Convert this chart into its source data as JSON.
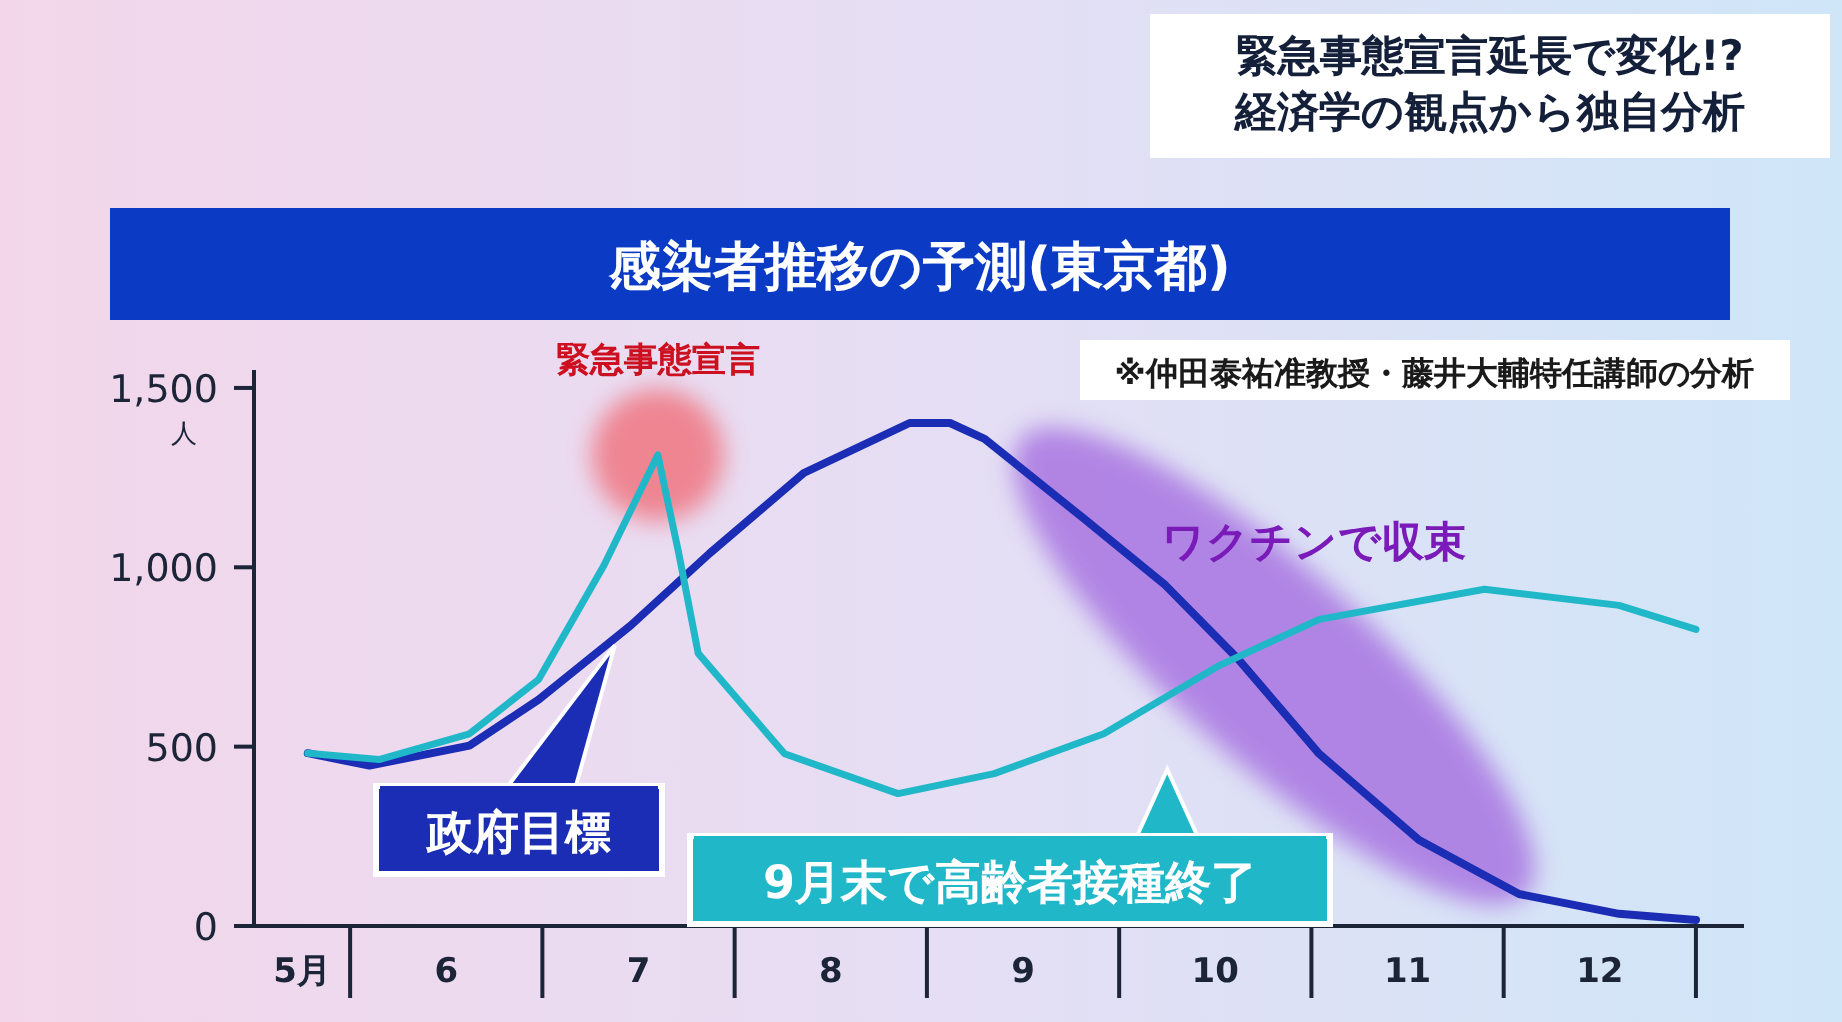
{
  "chart_data": {
    "type": "line",
    "title": "感染者推移の予測(東京都)",
    "subtitle": "緊急事態宣言延長で変化!?\n経済学の観点から独自分析",
    "ylabel": "人",
    "annotations": [
      "※仲田泰祐准教授・藤井大輔特任講師の分析",
      {
        "text": "緊急事態宣言",
        "x": 7.1,
        "y": 1313
      },
      "ワクチンで収束"
    ],
    "xlim": [
      5.0,
      12.75
    ],
    "xticks": [
      {
        "value": 5.25,
        "label": "5月"
      },
      6,
      7,
      8,
      9,
      10,
      11,
      12
    ],
    "ylim": [
      0,
      1550
    ],
    "yticks": [
      0,
      500,
      {
        "value": 1000,
        "label": "1,000"
      },
      {
        "value": 1500,
        "label": "1,500"
      }
    ],
    "grid": false,
    "marker": "none",
    "line_style": "solid",
    "series": [
      {
        "name": "政府目標",
        "color": "#1a2db4",
        "x": [
          5.28,
          5.6,
          6.12,
          6.48,
          6.96,
          7.37,
          7.86,
          8.41,
          8.62,
          8.8,
          9.32,
          9.74,
          10.12,
          10.54,
          11.06,
          11.58,
          12.1,
          12.5
        ],
        "values": [
          482,
          447,
          503,
          631,
          838,
          1039,
          1263,
          1402,
          1402,
          1358,
          1134,
          950,
          743,
          480,
          240,
          89,
          34,
          17
        ]
      },
      {
        "name": "9月末で高齢者接種終了",
        "color": "#20b8c8",
        "x": [
          5.28,
          5.65,
          6.12,
          6.48,
          6.82,
          7.1,
          7.21,
          7.31,
          7.76,
          8.35,
          8.85,
          9.42,
          10.02,
          10.54,
          11.4,
          12.1,
          12.5
        ],
        "values": [
          482,
          464,
          536,
          687,
          1006,
          1313,
          1039,
          760,
          480,
          369,
          425,
          536,
          726,
          855,
          939,
          894,
          827
        ]
      }
    ]
  }
}
